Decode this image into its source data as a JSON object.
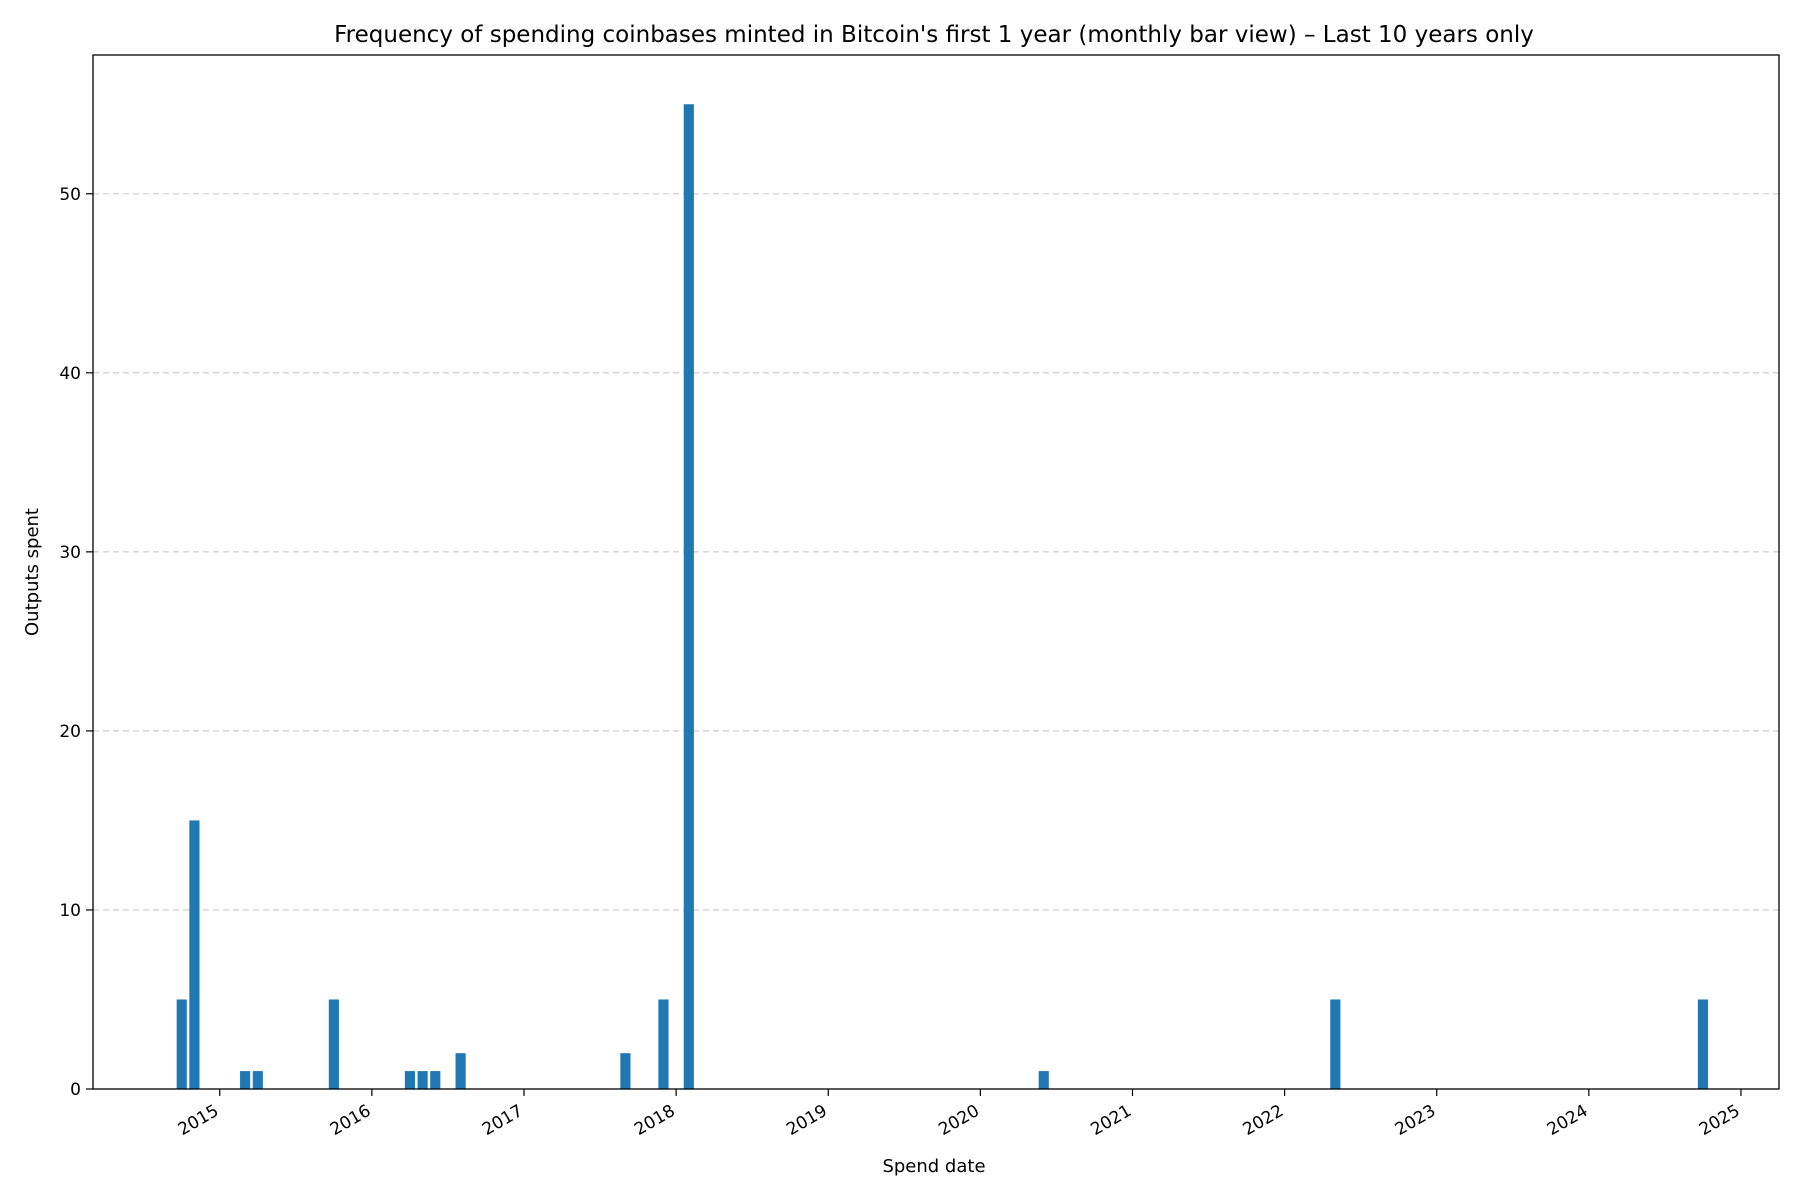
{
  "chart_data": {
    "type": "bar",
    "title": "Frequency of spending coinbases minted in Bitcoin's first 1 year (monthly bar view) – Last 10 years only",
    "xlabel": "Spend date",
    "ylabel": "Outputs spent",
    "x_axis": "date",
    "x_ticks": [
      "2015",
      "2016",
      "2017",
      "2018",
      "2019",
      "2020",
      "2021",
      "2022",
      "2023",
      "2024",
      "2025"
    ],
    "y_ticks": [
      0,
      10,
      20,
      30,
      40,
      50
    ],
    "ylim": [
      0,
      57.75
    ],
    "xlim": [
      "2014-03",
      "2025-04"
    ],
    "grid": "y-dashed",
    "bar_color": "#1f77b4",
    "bars": [
      {
        "x": "2014-10",
        "value": 5
      },
      {
        "x": "2014-11",
        "value": 15
      },
      {
        "x": "2015-03",
        "value": 1
      },
      {
        "x": "2015-04",
        "value": 1
      },
      {
        "x": "2015-10",
        "value": 5
      },
      {
        "x": "2016-04",
        "value": 1
      },
      {
        "x": "2016-05",
        "value": 1
      },
      {
        "x": "2016-06",
        "value": 1
      },
      {
        "x": "2016-08",
        "value": 2
      },
      {
        "x": "2017-09",
        "value": 2
      },
      {
        "x": "2017-12",
        "value": 5
      },
      {
        "x": "2018-02",
        "value": 55
      },
      {
        "x": "2020-06",
        "value": 1
      },
      {
        "x": "2022-05",
        "value": 5
      },
      {
        "x": "2024-10",
        "value": 5
      }
    ]
  }
}
